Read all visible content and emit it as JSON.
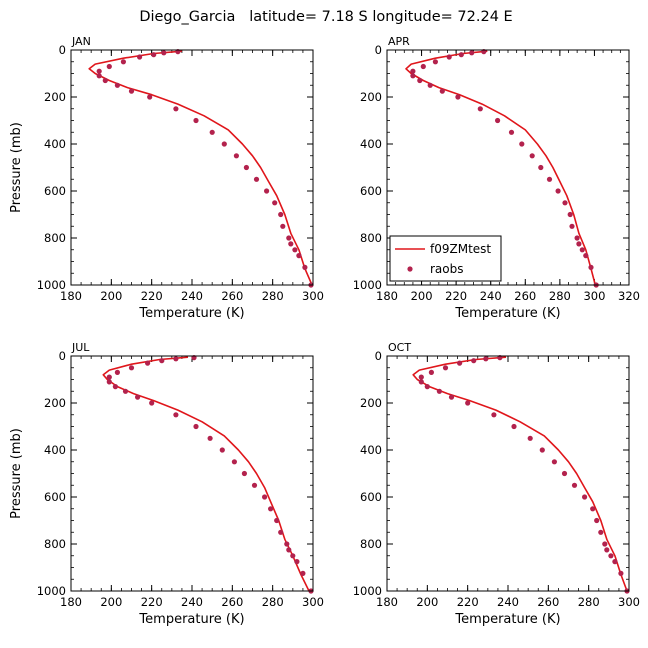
{
  "figure_title": "Diego_Garcia   latitude= 7.18 S longitude= 72.24 E",
  "colors": {
    "model": "#e0161b",
    "obs": "#b3224d",
    "axis": "#000000"
  },
  "chart_data": [
    {
      "type": "line",
      "panel": "JAN",
      "xlabel": "Temperature (K)",
      "ylabel": "Pressure (mb)",
      "xlim": [
        180,
        300
      ],
      "xticks": [
        180,
        200,
        220,
        240,
        260,
        280,
        300
      ],
      "ylim": [
        1000,
        0
      ],
      "yticks": [
        0,
        200,
        400,
        600,
        800,
        1000
      ],
      "series": [
        {
          "name": "f09ZMtest",
          "style": "line",
          "x": [
            235,
            221,
            206,
            192,
            189,
            192,
            199,
            208,
            220,
            233,
            246,
            258,
            265,
            270,
            274,
            278,
            282,
            286,
            289,
            293,
            296,
            299.5
          ],
          "y": [
            5,
            15,
            35,
            60,
            80,
            100,
            130,
            160,
            190,
            230,
            280,
            340,
            400,
            450,
            500,
            560,
            620,
            700,
            780,
            850,
            930,
            1000
          ]
        },
        {
          "name": "raobs",
          "style": "marker",
          "x": [
            233,
            226,
            221,
            214,
            206,
            199,
            194,
            194,
            197,
            203,
            210,
            219,
            232,
            242,
            250,
            256,
            262,
            267,
            272,
            277,
            281,
            284,
            285,
            288,
            289,
            291,
            293,
            296,
            299
          ],
          "y": [
            7,
            12,
            20,
            30,
            50,
            70,
            90,
            110,
            130,
            150,
            175,
            200,
            250,
            300,
            350,
            400,
            450,
            500,
            550,
            600,
            650,
            700,
            750,
            800,
            825,
            850,
            875,
            925,
            1000
          ]
        }
      ]
    },
    {
      "type": "line",
      "panel": "APR",
      "xlabel": "Temperature (K)",
      "ylabel": "",
      "xlim": [
        180,
        320
      ],
      "xticks": [
        180,
        200,
        220,
        240,
        260,
        280,
        300,
        320
      ],
      "ylim": [
        1000,
        0
      ],
      "yticks": [
        0,
        200,
        400,
        600,
        800,
        1000
      ],
      "legend": {
        "position": "lower-left",
        "entries": [
          "f09ZMtest",
          "raobs"
        ]
      },
      "series": [
        {
          "name": "f09ZMtest",
          "style": "line",
          "x": [
            238,
            224,
            208,
            194,
            191,
            194,
            201,
            210,
            222,
            235,
            248,
            260,
            267,
            272,
            276,
            280,
            284,
            288,
            291,
            295,
            298,
            300.5
          ],
          "y": [
            5,
            15,
            35,
            60,
            80,
            100,
            130,
            160,
            190,
            230,
            280,
            340,
            400,
            450,
            500,
            560,
            620,
            700,
            780,
            850,
            930,
            1000
          ]
        },
        {
          "name": "raobs",
          "style": "marker",
          "x": [
            236,
            229,
            223,
            216,
            208,
            201,
            195,
            195,
            199,
            205,
            212,
            221,
            234,
            244,
            252,
            258,
            264,
            269,
            274,
            279,
            283,
            286,
            287,
            290,
            291,
            293,
            295,
            298,
            301
          ],
          "y": [
            7,
            12,
            20,
            30,
            50,
            70,
            90,
            110,
            130,
            150,
            175,
            200,
            250,
            300,
            350,
            400,
            450,
            500,
            550,
            600,
            650,
            700,
            750,
            800,
            825,
            850,
            875,
            925,
            1000
          ]
        }
      ]
    },
    {
      "type": "line",
      "panel": "JUL",
      "xlabel": "Temperature (K)",
      "ylabel": "Pressure (mb)",
      "xlim": [
        180,
        300
      ],
      "xticks": [
        180,
        200,
        220,
        240,
        260,
        280,
        300
      ],
      "ylim": [
        1000,
        0
      ],
      "yticks": [
        0,
        200,
        400,
        600,
        800,
        1000
      ],
      "series": [
        {
          "name": "f09ZMtest",
          "style": "line",
          "x": [
            238,
            224,
            210,
            199,
            196,
            198,
            203,
            211,
            221,
            233,
            245,
            256,
            263,
            268,
            272,
            276,
            279,
            283,
            286,
            290,
            294,
            298
          ],
          "y": [
            5,
            15,
            35,
            60,
            80,
            100,
            130,
            160,
            190,
            230,
            280,
            340,
            400,
            450,
            500,
            560,
            620,
            700,
            780,
            850,
            930,
            1000
          ]
        },
        {
          "name": "raobs",
          "style": "marker",
          "x": [
            241,
            232,
            225,
            218,
            210,
            203,
            199,
            199,
            202,
            207,
            213,
            220,
            232,
            242,
            249,
            255,
            261,
            266,
            271,
            276,
            279,
            282,
            284,
            287,
            288,
            290,
            292,
            295,
            299
          ],
          "y": [
            7,
            12,
            20,
            30,
            50,
            70,
            90,
            110,
            130,
            150,
            175,
            200,
            250,
            300,
            350,
            400,
            450,
            500,
            550,
            600,
            650,
            700,
            750,
            800,
            825,
            850,
            875,
            925,
            1000
          ]
        }
      ]
    },
    {
      "type": "line",
      "panel": "OCT",
      "xlabel": "Temperature (K)",
      "ylabel": "",
      "xlim": [
        180,
        300
      ],
      "xticks": [
        180,
        200,
        220,
        240,
        260,
        280,
        300
      ],
      "ylim": [
        1000,
        0
      ],
      "yticks": [
        0,
        200,
        400,
        600,
        800,
        1000
      ],
      "series": [
        {
          "name": "f09ZMtest",
          "style": "line",
          "x": [
            239,
            224,
            209,
            196,
            193,
            195,
            201,
            210,
            221,
            234,
            246,
            258,
            265,
            270,
            274,
            278,
            282,
            286,
            289,
            293,
            296,
            299
          ],
          "y": [
            5,
            15,
            35,
            60,
            80,
            100,
            130,
            160,
            190,
            230,
            280,
            340,
            400,
            450,
            500,
            560,
            620,
            700,
            780,
            850,
            930,
            1000
          ]
        },
        {
          "name": "raobs",
          "style": "marker",
          "x": [
            236,
            229,
            223,
            216,
            209,
            202,
            197,
            197,
            200,
            206,
            212,
            220,
            233,
            243,
            251,
            257,
            263,
            268,
            273,
            278,
            282,
            284,
            286,
            288,
            289,
            291,
            293,
            296,
            299
          ],
          "y": [
            7,
            12,
            20,
            30,
            50,
            70,
            90,
            110,
            130,
            150,
            175,
            200,
            250,
            300,
            350,
            400,
            450,
            500,
            550,
            600,
            650,
            700,
            750,
            800,
            825,
            850,
            875,
            925,
            1000
          ]
        }
      ]
    }
  ]
}
